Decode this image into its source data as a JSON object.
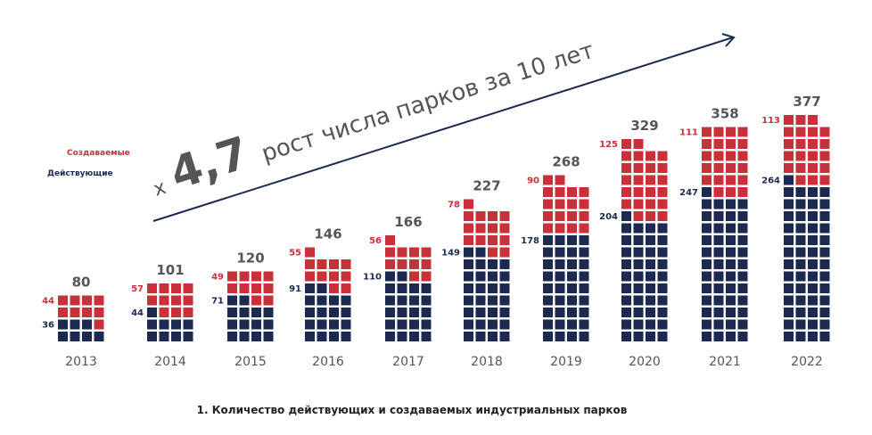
{
  "chart_data": {
    "type": "bar",
    "stacked": true,
    "style": "waffle",
    "unit_per_square": 5,
    "categories": [
      "2013",
      "2014",
      "2015",
      "2016",
      "2017",
      "2018",
      "2019",
      "2020",
      "2021",
      "2022"
    ],
    "totals": [
      80,
      101,
      120,
      146,
      166,
      227,
      268,
      329,
      358,
      377
    ],
    "series": [
      {
        "name": "Действующие",
        "color": "#1c2a52",
        "values": [
          36,
          44,
          71,
          91,
          110,
          149,
          178,
          204,
          247,
          264
        ]
      },
      {
        "name": "Создаваемые",
        "color": "#c8303a",
        "values": [
          44,
          57,
          49,
          55,
          56,
          78,
          90,
          125,
          111,
          113
        ]
      }
    ],
    "legend_placement": "top-left",
    "grid": false,
    "title": "1. Количество действующих и создаваемых индустриальных парков",
    "annotation": {
      "multiplier": "4,7",
      "prefix": "x",
      "text": "рост числа парков  за 10 лет"
    }
  }
}
